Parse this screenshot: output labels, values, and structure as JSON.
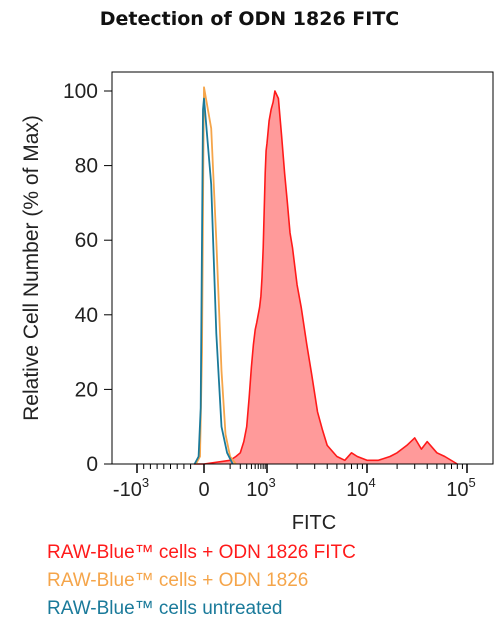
{
  "chart_data": {
    "type": "area",
    "title": "Detection of ODN 1826 FITC",
    "xlabel": "FITC",
    "ylabel": "Relative Cell Number (% of Max)",
    "x_scale": "biexponential",
    "ylim": [
      0,
      105
    ],
    "y_ticks": [
      0,
      20,
      40,
      60,
      80,
      100
    ],
    "x_ticks": [
      {
        "value": -1000,
        "base": "-10",
        "exp": "3"
      },
      {
        "value": 0,
        "base": "0",
        "exp": ""
      },
      {
        "value": 1000,
        "base": "10",
        "exp": "3"
      },
      {
        "value": 10000,
        "base": "10",
        "exp": "4"
      },
      {
        "value": 100000,
        "base": "10",
        "exp": "5"
      }
    ],
    "grid": false,
    "legend_placement": "bottom-left",
    "series": [
      {
        "name": "RAW-Blue™ cells + ODN 1826 FITC",
        "color": "#ff1a1a",
        "fill": "#ff9a9a",
        "filled": true,
        "x": [
          -150,
          0,
          100,
          150,
          200,
          250,
          300,
          350,
          400,
          450,
          500,
          550,
          600,
          650,
          700,
          750,
          800,
          850,
          900,
          950,
          1000,
          1050,
          1100,
          1150,
          1200,
          1300,
          1400,
          1500,
          1600,
          1700,
          1800,
          2000,
          2200,
          2500,
          2800,
          3200,
          3600,
          4000,
          5000,
          6000,
          7000,
          8000,
          10000,
          13000,
          17000,
          20000,
          25000,
          30000,
          35000,
          40000,
          50000,
          60000,
          80000
        ],
        "y": [
          0,
          0,
          1,
          2,
          3,
          6,
          10,
          18,
          26,
          32,
          36,
          38,
          40,
          42,
          45,
          50,
          58,
          68,
          78,
          84,
          86,
          92,
          95,
          97,
          100,
          98,
          88,
          78,
          70,
          62,
          58,
          48,
          42,
          32,
          24,
          14,
          9,
          5,
          2,
          1,
          3,
          2,
          1,
          1,
          2,
          3,
          5,
          7,
          4,
          6,
          3,
          2,
          0
        ]
      },
      {
        "name": "RAW-Blue™ cells + ODN 1826",
        "color": "#f5a54a",
        "fill": "none",
        "filled": false,
        "x": [
          -120,
          -60,
          -30,
          -10,
          0,
          15,
          30,
          50,
          70,
          100,
          150
        ],
        "y": [
          0,
          2,
          30,
          80,
          101,
          90,
          60,
          25,
          8,
          2,
          0
        ]
      },
      {
        "name": "RAW-Blue™ cells untreated",
        "color": "#1a7a9a",
        "fill": "none",
        "filled": false,
        "x": [
          -140,
          -80,
          -50,
          -30,
          -15,
          0,
          15,
          30,
          50,
          80,
          120
        ],
        "y": [
          0,
          2,
          15,
          60,
          95,
          98,
          75,
          35,
          10,
          3,
          0
        ]
      }
    ]
  }
}
